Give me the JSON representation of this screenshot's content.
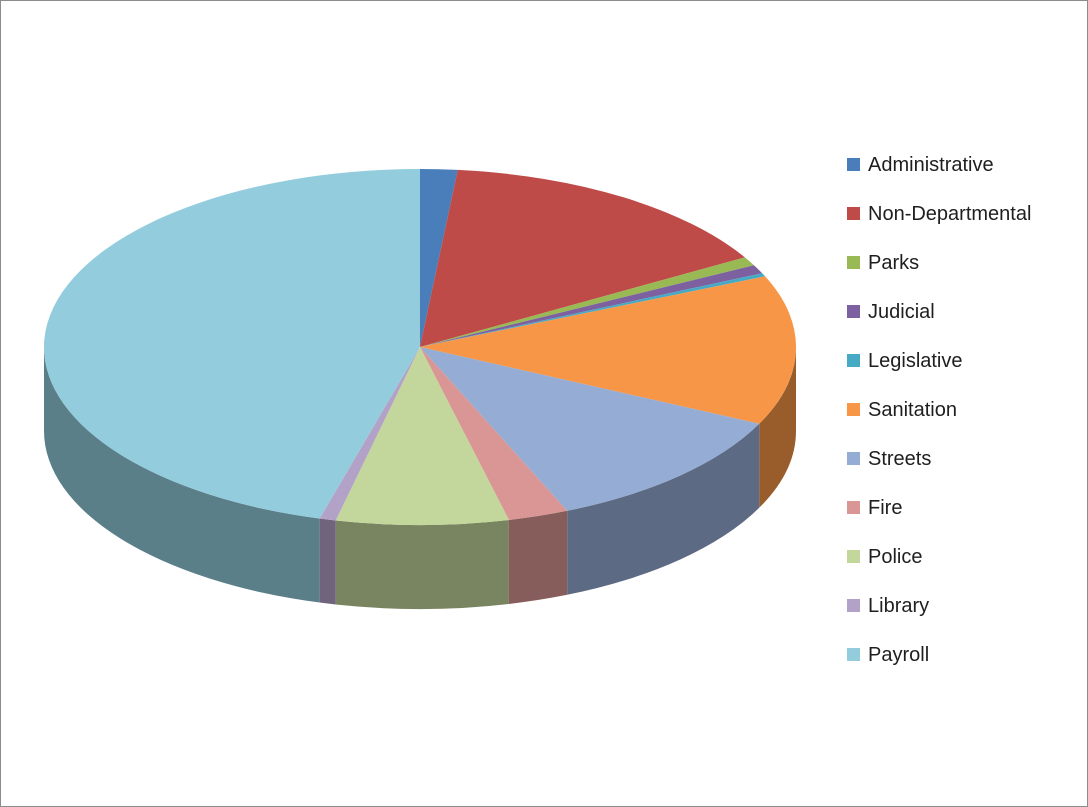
{
  "chart_data": {
    "type": "pie",
    "title": "",
    "style": "3d",
    "legend_position": "right",
    "start_angle_deg": 90,
    "direction": "clockwise",
    "slices": [
      {
        "label": "Administrative",
        "value": 1.6,
        "color": "#4a7ebb"
      },
      {
        "label": "Non-Departmental",
        "value": 15.0,
        "color": "#be4b48"
      },
      {
        "label": "Parks",
        "value": 0.8,
        "color": "#98b954"
      },
      {
        "label": "Judicial",
        "value": 0.8,
        "color": "#7d60a0"
      },
      {
        "label": "Legislative",
        "value": 0.3,
        "color": "#46aac5"
      },
      {
        "label": "Sanitation",
        "value": 13.6,
        "color": "#f79646"
      },
      {
        "label": "Streets",
        "value": 11.5,
        "color": "#95acd4"
      },
      {
        "label": "Fire",
        "value": 2.6,
        "color": "#d99694"
      },
      {
        "label": "Police",
        "value": 7.4,
        "color": "#c3d69b"
      },
      {
        "label": "Library",
        "value": 0.7,
        "color": "#b3a2c7"
      },
      {
        "label": "Payroll",
        "value": 45.7,
        "color": "#93cddd"
      }
    ]
  }
}
